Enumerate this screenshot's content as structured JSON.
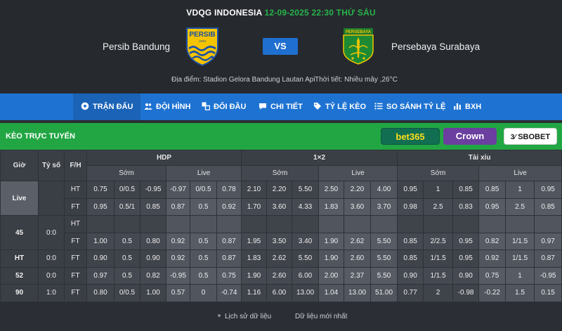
{
  "header": {
    "league": "VDQG INDONESIA",
    "datetime": "12-09-2025 22:30 THỨ SÁU",
    "home_team": "Persib Bandung",
    "away_team": "Persebaya Surabaya",
    "vs_label": "VS",
    "home_logo_text": "PERSIB",
    "home_logo_year": "1933",
    "away_logo_text": "PERSEBAYA",
    "venue": "Địa điểm: Stadion Gelora Bandung Lautan Api",
    "weather": "Thời tiết: Nhiều mây ,26°C"
  },
  "nav": {
    "items": [
      {
        "label": "TRẬN ĐẤU",
        "icon": "soccer-ball-icon"
      },
      {
        "label": "ĐỘI HÌNH",
        "icon": "users-icon"
      },
      {
        "label": "ĐỐI ĐẦU",
        "icon": "versus-icon"
      },
      {
        "label": "CHI TIẾT",
        "icon": "chat-icon"
      },
      {
        "label": "TỶ LỆ KÈO",
        "icon": "tag-icon"
      },
      {
        "label": "SO SÁNH TỶ LỆ",
        "icon": "list-icon"
      },
      {
        "label": "BXH",
        "icon": "bar-chart-icon"
      }
    ],
    "active": "TRẬN ĐẤU"
  },
  "odds": {
    "title": "KÈO TRỰC TUYẾN",
    "bookmakers": [
      "bet365",
      "Crown",
      "SBOBET"
    ]
  },
  "table": {
    "col_time": "Giờ",
    "col_score": "Tỷ số",
    "col_fh": "F/H",
    "group_hdp": "HDP",
    "group_1x2": "1×2",
    "group_ou": "Tài xỉu",
    "sub_early": "Sớm",
    "sub_live": "Live",
    "rows": [
      {
        "time": "Live",
        "score": "",
        "fh": "HT",
        "v": [
          "0.75",
          "0/0.5",
          "-0.95",
          "-0.97",
          "0/0.5",
          "0.78",
          "2.10",
          "2.20",
          "5.50",
          "2.50",
          "2.20",
          "4.00",
          "0.95",
          "1",
          "0.85",
          "0.85",
          "1",
          "0.95"
        ]
      },
      {
        "time": "",
        "score": "",
        "fh": "FT",
        "v": [
          "0.95",
          "0.5/1",
          "0.85",
          "0.87",
          "0.5",
          "0.92",
          "1.70",
          "3.60",
          "4.33",
          "1.83",
          "3.60",
          "3.70",
          "0.98",
          "2.5",
          "0.83",
          "0.95",
          "2.5",
          "0.85"
        ]
      },
      {
        "time": "45",
        "score": "0:0",
        "fh": "HT",
        "v": [
          "",
          "",
          "",
          "",
          "",
          "",
          "",
          "",
          "",
          "",
          "",
          "",
          "",
          "",
          "",
          "",
          "",
          ""
        ]
      },
      {
        "time": "",
        "score": "",
        "fh": "FT",
        "v": [
          "1.00",
          "0.5",
          "0.80",
          "0.92",
          "0.5",
          "0.87",
          "1.95",
          "3.50",
          "3.40",
          "1.90",
          "2.62",
          "5.50",
          "0.85",
          "2/2.5",
          "0.95",
          "0.82",
          "1/1.5",
          "0.97"
        ]
      },
      {
        "time": "HT",
        "score": "0:0",
        "fh": "FT",
        "v": [
          "0.90",
          "0.5",
          "0.90",
          "0.92",
          "0.5",
          "0.87",
          "1.83",
          "2.62",
          "5.50",
          "1.90",
          "2.60",
          "5.50",
          "0.85",
          "1/1.5",
          "0.95",
          "0.92",
          "1/1.5",
          "0.87"
        ]
      },
      {
        "time": "52",
        "score": "0:0",
        "fh": "FT",
        "v": [
          "0.97",
          "0.5",
          "0.82",
          "-0.95",
          "0.5",
          "0.75",
          "1.90",
          "2.60",
          "6.00",
          "2.00",
          "2.37",
          "5.50",
          "0.90",
          "1/1.5",
          "0.90",
          "0.75",
          "1",
          "-0.95"
        ]
      },
      {
        "time": "90",
        "score": "1:0",
        "fh": "FT",
        "v": [
          "0.80",
          "0/0.5",
          "1.00",
          "0.57",
          "0",
          "-0.74",
          "1.16",
          "6.00",
          "13.00",
          "1.04",
          "13.00",
          "51.00",
          "0.77",
          "2",
          "-0.98",
          "-0.22",
          "1.5",
          "0.15"
        ]
      }
    ]
  },
  "footer": {
    "history": "Lịch sử dữ liệu",
    "latest": "Dữ liệu mới nhất"
  },
  "colors": {
    "nav_blue": "#1e73d2",
    "odds_green": "#21a643",
    "accent_green": "#27b34a"
  }
}
